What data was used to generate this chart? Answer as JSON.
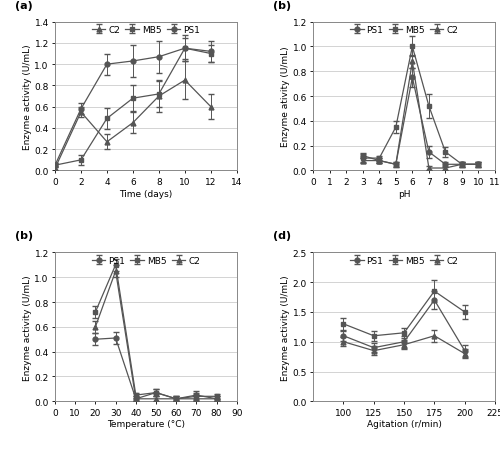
{
  "panel_a": {
    "title": "(a)",
    "xlabel": "Time (days)",
    "ylabel": "Enzyme activity (U/mL)",
    "xlim": [
      0,
      14
    ],
    "ylim": [
      0,
      1.4
    ],
    "yticks": [
      0,
      0.2,
      0.4,
      0.6,
      0.8,
      1.0,
      1.2,
      1.4
    ],
    "xticks": [
      0,
      2,
      4,
      6,
      8,
      10,
      12,
      14
    ],
    "series": {
      "C2": {
        "x": [
          0,
          2,
          4,
          6,
          8,
          10,
          12
        ],
        "y": [
          0.02,
          0.55,
          0.27,
          0.45,
          0.7,
          0.85,
          0.6
        ],
        "yerr": [
          0.02,
          0.05,
          0.07,
          0.1,
          0.15,
          0.18,
          0.12
        ],
        "marker": "^",
        "label": "C2"
      },
      "MB5": {
        "x": [
          0,
          2,
          4,
          6,
          8,
          10,
          12
        ],
        "y": [
          0.05,
          0.1,
          0.49,
          0.68,
          0.72,
          1.15,
          1.1
        ],
        "yerr": [
          0.02,
          0.05,
          0.1,
          0.12,
          0.12,
          0.1,
          0.08
        ],
        "marker": "s",
        "label": "MB5"
      },
      "PS1": {
        "x": [
          0,
          2,
          4,
          6,
          8,
          10,
          12
        ],
        "y": [
          0.05,
          0.58,
          1.0,
          1.03,
          1.07,
          1.15,
          1.12
        ],
        "yerr": [
          0.02,
          0.05,
          0.1,
          0.15,
          0.15,
          0.12,
          0.1
        ],
        "marker": "o",
        "label": "PS1"
      }
    },
    "legend_order": [
      "C2",
      "MB5",
      "PS1"
    ]
  },
  "panel_b": {
    "title": "(b)",
    "xlabel": "pH",
    "ylabel": "Enzyme ativity (U/mL)",
    "xlim": [
      0,
      11
    ],
    "ylim": [
      0,
      1.2
    ],
    "yticks": [
      0,
      0.2,
      0.4,
      0.6,
      0.8,
      1.0,
      1.2
    ],
    "xticks": [
      0,
      1,
      2,
      3,
      4,
      5,
      6,
      7,
      8,
      9,
      10,
      11
    ],
    "series": {
      "PS1": {
        "x": [
          3,
          4,
          5,
          6,
          7,
          8,
          9,
          10
        ],
        "y": [
          0.12,
          0.08,
          0.05,
          0.75,
          0.15,
          0.05,
          0.05,
          0.05
        ],
        "yerr": [
          0.02,
          0.02,
          0.02,
          0.08,
          0.05,
          0.02,
          0.02,
          0.02
        ],
        "marker": "o",
        "label": "PS1"
      },
      "MB5": {
        "x": [
          3,
          4,
          5,
          6,
          7,
          8,
          9,
          10
        ],
        "y": [
          0.1,
          0.1,
          0.35,
          1.0,
          0.52,
          0.15,
          0.05,
          0.05
        ],
        "yerr": [
          0.03,
          0.02,
          0.05,
          0.08,
          0.1,
          0.04,
          0.02,
          0.02
        ],
        "marker": "s",
        "label": "MB5"
      },
      "C2": {
        "x": [
          3,
          4,
          5,
          6,
          7,
          8,
          9,
          10
        ],
        "y": [
          0.08,
          0.08,
          0.05,
          0.88,
          0.02,
          0.02,
          0.05,
          0.05
        ],
        "yerr": [
          0.02,
          0.02,
          0.02,
          0.05,
          0.02,
          0.02,
          0.02,
          0.02
        ],
        "marker": "^",
        "label": "C2"
      }
    },
    "legend_order": [
      "PS1",
      "MB5",
      "C2"
    ]
  },
  "panel_c": {
    "title": "(b)",
    "xlabel": "Temperature (°C)",
    "ylabel": "Enzyme activity (U/mL)",
    "xlim": [
      0,
      90
    ],
    "ylim": [
      0,
      1.2
    ],
    "yticks": [
      0,
      0.2,
      0.4,
      0.6,
      0.8,
      1.0,
      1.2
    ],
    "xticks": [
      0,
      10,
      20,
      30,
      40,
      50,
      60,
      70,
      80,
      90
    ],
    "series": {
      "PS1": {
        "x": [
          20,
          30,
          40,
          50,
          60,
          70,
          80
        ],
        "y": [
          0.5,
          0.51,
          0.02,
          0.07,
          0.02,
          0.05,
          0.02
        ],
        "yerr": [
          0.05,
          0.05,
          0.02,
          0.03,
          0.02,
          0.03,
          0.02
        ],
        "marker": "o",
        "label": "PS1"
      },
      "MB5": {
        "x": [
          20,
          30,
          40,
          50,
          60,
          70,
          80
        ],
        "y": [
          0.72,
          1.1,
          0.05,
          0.07,
          0.02,
          0.04,
          0.04
        ],
        "yerr": [
          0.05,
          0.05,
          0.02,
          0.03,
          0.02,
          0.03,
          0.02
        ],
        "marker": "s",
        "label": "MB5"
      },
      "C2": {
        "x": [
          20,
          30,
          40,
          50,
          60,
          70,
          80
        ],
        "y": [
          0.6,
          1.05,
          0.02,
          0.02,
          0.02,
          0.02,
          0.02
        ],
        "yerr": [
          0.05,
          0.05,
          0.02,
          0.02,
          0.02,
          0.02,
          0.02
        ],
        "marker": "^",
        "label": "C2"
      }
    },
    "legend_order": [
      "PS1",
      "MB5",
      "C2"
    ]
  },
  "panel_d": {
    "title": "(d)",
    "xlabel": "Agitation (r/min)",
    "ylabel": "Enzyme activity (U/mL)",
    "xlim": [
      75,
      225
    ],
    "ylim": [
      0,
      2.5
    ],
    "yticks": [
      0,
      0.5,
      1.0,
      1.5,
      2.0,
      2.5
    ],
    "xticks": [
      100,
      125,
      150,
      175,
      200,
      225
    ],
    "series": {
      "PS1": {
        "x": [
          100,
          125,
          150,
          175,
          200
        ],
        "y": [
          1.1,
          0.9,
          1.0,
          1.7,
          0.85
        ],
        "yerr": [
          0.08,
          0.08,
          0.1,
          0.15,
          0.1
        ],
        "marker": "o",
        "label": "PS1"
      },
      "MB5": {
        "x": [
          100,
          125,
          150,
          175,
          200
        ],
        "y": [
          1.3,
          1.1,
          1.15,
          1.85,
          1.5
        ],
        "yerr": [
          0.1,
          0.08,
          0.08,
          0.18,
          0.12
        ],
        "marker": "s",
        "label": "MB5"
      },
      "C2": {
        "x": [
          100,
          125,
          150,
          175,
          200
        ],
        "y": [
          1.0,
          0.85,
          0.95,
          1.1,
          0.8
        ],
        "yerr": [
          0.08,
          0.08,
          0.08,
          0.1,
          0.08
        ],
        "marker": "^",
        "label": "C2"
      }
    },
    "legend_order": [
      "PS1",
      "MB5",
      "C2"
    ]
  },
  "line_color": "#555555",
  "grid_color": "#cccccc",
  "font_size": 6.5,
  "label_font_size": 6.5,
  "title_font_size": 8,
  "legend_font_size": 6.5
}
